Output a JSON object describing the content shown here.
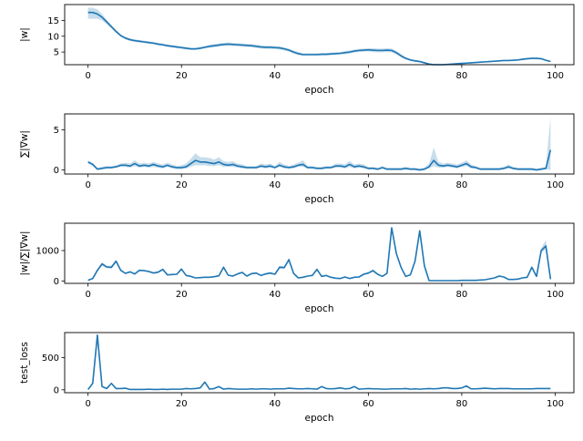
{
  "chart_data": [
    {
      "type": "line",
      "xlabel": "epoch",
      "ylabel": "|w|",
      "xlim": [
        -5,
        104
      ],
      "ylim": [
        1,
        20
      ],
      "xticks": [
        0,
        20,
        40,
        60,
        80,
        100
      ],
      "yticks": [
        5,
        10,
        15
      ],
      "color": "#1f77b4",
      "band": true,
      "x": [
        0,
        1,
        2,
        3,
        4,
        5,
        6,
        7,
        8,
        9,
        10,
        11,
        12,
        13,
        14,
        15,
        16,
        17,
        18,
        19,
        20,
        21,
        22,
        23,
        24,
        25,
        26,
        27,
        28,
        29,
        30,
        31,
        32,
        33,
        34,
        35,
        36,
        37,
        38,
        39,
        40,
        41,
        42,
        43,
        44,
        45,
        46,
        47,
        48,
        49,
        50,
        51,
        52,
        53,
        54,
        55,
        56,
        57,
        58,
        59,
        60,
        61,
        62,
        63,
        64,
        65,
        66,
        67,
        68,
        69,
        70,
        71,
        72,
        73,
        74,
        75,
        76,
        77,
        78,
        79,
        80,
        81,
        82,
        83,
        84,
        85,
        86,
        87,
        88,
        89,
        90,
        91,
        92,
        93,
        94,
        95,
        96,
        97,
        98,
        99
      ],
      "y": [
        17.5,
        17.5,
        17.0,
        16.0,
        14.5,
        13.0,
        11.5,
        10.2,
        9.4,
        8.9,
        8.6,
        8.4,
        8.2,
        8.0,
        7.8,
        7.5,
        7.3,
        7.0,
        6.8,
        6.6,
        6.4,
        6.2,
        6.0,
        6.0,
        6.2,
        6.5,
        6.8,
        7.0,
        7.2,
        7.4,
        7.5,
        7.4,
        7.3,
        7.2,
        7.1,
        7.0,
        6.8,
        6.6,
        6.5,
        6.5,
        6.4,
        6.3,
        6.0,
        5.6,
        5.0,
        4.5,
        4.2,
        4.2,
        4.2,
        4.2,
        4.3,
        4.3,
        4.4,
        4.5,
        4.6,
        4.8,
        5.0,
        5.3,
        5.5,
        5.6,
        5.7,
        5.6,
        5.5,
        5.5,
        5.6,
        5.5,
        4.8,
        3.8,
        3.0,
        2.5,
        2.2,
        2.0,
        1.6,
        1.2,
        1.0,
        1.0,
        1.0,
        1.1,
        1.2,
        1.3,
        1.4,
        1.5,
        1.6,
        1.7,
        1.8,
        1.9,
        2.0,
        2.1,
        2.2,
        2.3,
        2.3,
        2.4,
        2.5,
        2.7,
        2.9,
        3.0,
        3.0,
        2.9,
        2.4,
        2.0
      ],
      "lower": [
        15.5,
        15.5,
        15.5,
        15.0,
        13.8,
        12.5,
        11.0,
        9.8,
        9.0,
        8.5,
        8.2,
        8.0,
        7.8,
        7.6,
        7.4,
        7.1,
        6.9,
        6.6,
        6.4,
        6.2,
        6.0,
        5.8,
        5.6,
        5.6,
        5.8,
        6.1,
        6.3,
        6.5,
        6.7,
        6.9,
        7.0,
        6.9,
        6.8,
        6.7,
        6.6,
        6.5,
        6.3,
        6.1,
        6.0,
        6.0,
        5.9,
        5.8,
        5.5,
        5.1,
        4.5,
        4.0,
        3.8,
        3.8,
        3.8,
        3.8,
        3.9,
        3.9,
        4.0,
        4.1,
        4.2,
        4.3,
        4.5,
        4.8,
        5.0,
        5.1,
        5.2,
        5.0,
        4.9,
        4.9,
        5.0,
        4.9,
        4.2,
        3.3,
        2.6,
        2.2,
        1.9,
        1.7,
        1.3,
        1.0,
        0.8,
        0.8,
        0.8,
        0.9,
        1.0,
        1.1,
        1.2,
        1.3,
        1.4,
        1.5,
        1.6,
        1.7,
        1.8,
        1.9,
        2.0,
        2.1,
        2.1,
        2.2,
        2.3,
        2.4,
        2.6,
        2.7,
        2.7,
        2.6,
        2.2,
        1.8
      ],
      "upper": [
        19.0,
        19.0,
        18.5,
        17.0,
        15.2,
        13.6,
        12.0,
        10.6,
        9.8,
        9.3,
        9.0,
        8.8,
        8.6,
        8.4,
        8.2,
        7.9,
        7.7,
        7.4,
        7.2,
        7.0,
        6.8,
        6.6,
        6.4,
        6.4,
        6.6,
        6.9,
        7.3,
        7.5,
        7.7,
        7.9,
        8.0,
        7.9,
        7.8,
        7.7,
        7.6,
        7.5,
        7.3,
        7.1,
        7.0,
        7.0,
        6.9,
        6.8,
        6.5,
        6.1,
        5.5,
        5.0,
        4.6,
        4.6,
        4.6,
        4.6,
        4.7,
        4.7,
        4.8,
        4.9,
        5.0,
        5.3,
        5.5,
        5.8,
        6.0,
        6.1,
        6.2,
        6.2,
        6.1,
        6.1,
        6.2,
        6.1,
        5.4,
        4.3,
        3.4,
        2.8,
        2.5,
        2.3,
        1.9,
        1.4,
        1.2,
        1.2,
        1.2,
        1.3,
        1.4,
        1.5,
        1.6,
        1.7,
        1.8,
        1.9,
        2.0,
        2.1,
        2.2,
        2.3,
        2.4,
        2.5,
        2.5,
        2.6,
        2.7,
        3.0,
        3.2,
        3.3,
        3.3,
        3.2,
        2.6,
        2.2
      ]
    },
    {
      "type": "line",
      "xlabel": "epoch",
      "ylabel": "∑|∇w|",
      "xlim": [
        -5,
        104
      ],
      "ylim": [
        -0.5,
        7.0
      ],
      "xticks": [
        0,
        20,
        40,
        60,
        80,
        100
      ],
      "yticks": [
        0,
        5
      ],
      "color": "#1f77b4",
      "band": true,
      "x": [
        0,
        1,
        2,
        3,
        4,
        5,
        6,
        7,
        8,
        9,
        10,
        11,
        12,
        13,
        14,
        15,
        16,
        17,
        18,
        19,
        20,
        21,
        22,
        23,
        24,
        25,
        26,
        27,
        28,
        29,
        30,
        31,
        32,
        33,
        34,
        35,
        36,
        37,
        38,
        39,
        40,
        41,
        42,
        43,
        44,
        45,
        46,
        47,
        48,
        49,
        50,
        51,
        52,
        53,
        54,
        55,
        56,
        57,
        58,
        59,
        60,
        61,
        62,
        63,
        64,
        65,
        66,
        67,
        68,
        69,
        70,
        71,
        72,
        73,
        74,
        75,
        76,
        77,
        78,
        79,
        80,
        81,
        82,
        83,
        84,
        85,
        86,
        87,
        88,
        89,
        90,
        91,
        92,
        93,
        94,
        95,
        96,
        97,
        98,
        99
      ],
      "y": [
        1.0,
        0.7,
        0.1,
        0.2,
        0.3,
        0.3,
        0.4,
        0.6,
        0.6,
        0.5,
        0.8,
        0.5,
        0.6,
        0.5,
        0.7,
        0.5,
        0.4,
        0.6,
        0.4,
        0.3,
        0.3,
        0.4,
        0.8,
        1.2,
        1.0,
        1.0,
        0.9,
        0.8,
        1.0,
        0.7,
        0.6,
        0.7,
        0.5,
        0.4,
        0.3,
        0.3,
        0.3,
        0.5,
        0.4,
        0.5,
        0.3,
        0.6,
        0.4,
        0.3,
        0.4,
        0.6,
        0.7,
        0.3,
        0.3,
        0.2,
        0.2,
        0.3,
        0.3,
        0.5,
        0.5,
        0.4,
        0.7,
        0.4,
        0.5,
        0.4,
        0.2,
        0.2,
        0.1,
        0.3,
        0.1,
        0.1,
        0.1,
        0.1,
        0.2,
        0.1,
        0.1,
        0.0,
        0.1,
        0.4,
        1.2,
        0.6,
        0.5,
        0.6,
        0.5,
        0.4,
        0.6,
        0.8,
        0.4,
        0.3,
        0.1,
        0.1,
        0.1,
        0.1,
        0.1,
        0.2,
        0.4,
        0.2,
        0.1,
        0.1,
        0.1,
        0.1,
        0.0,
        0.1,
        0.2,
        2.5
      ],
      "lower": [
        0.8,
        0.5,
        0.0,
        0.1,
        0.2,
        0.2,
        0.3,
        0.4,
        0.4,
        0.3,
        0.5,
        0.3,
        0.4,
        0.3,
        0.4,
        0.3,
        0.2,
        0.4,
        0.2,
        0.1,
        0.1,
        0.2,
        0.4,
        0.6,
        0.6,
        0.6,
        0.5,
        0.5,
        0.6,
        0.4,
        0.4,
        0.4,
        0.3,
        0.2,
        0.2,
        0.2,
        0.2,
        0.3,
        0.2,
        0.3,
        0.2,
        0.4,
        0.2,
        0.2,
        0.2,
        0.4,
        0.4,
        0.2,
        0.2,
        0.1,
        0.1,
        0.2,
        0.2,
        0.3,
        0.3,
        0.2,
        0.4,
        0.2,
        0.3,
        0.2,
        0.1,
        0.1,
        0.0,
        0.2,
        0.0,
        0.0,
        0.0,
        0.0,
        0.1,
        0.0,
        0.0,
        0.0,
        0.0,
        0.2,
        0.5,
        0.3,
        0.3,
        0.4,
        0.3,
        0.2,
        0.4,
        0.5,
        0.2,
        0.2,
        0.0,
        0.0,
        0.0,
        0.0,
        0.0,
        0.1,
        0.2,
        0.1,
        0.0,
        0.0,
        0.0,
        0.0,
        0.0,
        0.0,
        0.1,
        0.0
      ],
      "upper": [
        1.2,
        0.9,
        0.3,
        0.4,
        0.5,
        0.5,
        0.6,
        0.8,
        0.9,
        0.8,
        1.2,
        0.8,
        0.9,
        0.8,
        1.0,
        0.8,
        0.7,
        0.9,
        0.7,
        0.5,
        0.6,
        0.8,
        1.4,
        2.1,
        1.6,
        1.6,
        1.5,
        1.3,
        1.6,
        1.1,
        1.0,
        1.1,
        0.8,
        0.7,
        0.5,
        0.5,
        0.5,
        0.8,
        0.7,
        0.8,
        0.5,
        1.0,
        0.7,
        0.5,
        0.7,
        0.9,
        1.2,
        0.5,
        0.5,
        0.4,
        0.4,
        0.5,
        0.5,
        0.8,
        0.8,
        0.7,
        1.1,
        0.7,
        0.8,
        0.7,
        0.4,
        0.4,
        0.3,
        0.5,
        0.3,
        0.3,
        0.3,
        0.3,
        0.4,
        0.3,
        0.3,
        0.2,
        0.3,
        0.8,
        2.8,
        1.0,
        0.8,
        0.9,
        0.8,
        0.7,
        0.9,
        1.2,
        0.7,
        0.5,
        0.3,
        0.3,
        0.3,
        0.3,
        0.3,
        0.4,
        0.7,
        0.4,
        0.3,
        0.3,
        0.3,
        0.3,
        0.2,
        0.3,
        0.4,
        6.6
      ]
    },
    {
      "type": "line",
      "xlabel": "epoch",
      "ylabel": "|w|/∑|∇w|",
      "xlim": [
        -5,
        104
      ],
      "ylim": [
        -80,
        1900
      ],
      "xticks": [
        0,
        20,
        40,
        60,
        80,
        100
      ],
      "yticks": [
        0,
        1000
      ],
      "color": "#1f77b4",
      "band": true,
      "x": [
        0,
        1,
        2,
        3,
        4,
        5,
        6,
        7,
        8,
        9,
        10,
        11,
        12,
        13,
        14,
        15,
        16,
        17,
        18,
        19,
        20,
        21,
        22,
        23,
        24,
        25,
        26,
        27,
        28,
        29,
        30,
        31,
        32,
        33,
        34,
        35,
        36,
        37,
        38,
        39,
        40,
        41,
        42,
        43,
        44,
        45,
        46,
        47,
        48,
        49,
        50,
        51,
        52,
        53,
        54,
        55,
        56,
        57,
        58,
        59,
        60,
        61,
        62,
        63,
        64,
        65,
        66,
        67,
        68,
        69,
        70,
        71,
        72,
        73,
        74,
        75,
        76,
        77,
        78,
        79,
        80,
        81,
        82,
        83,
        84,
        85,
        86,
        87,
        88,
        89,
        90,
        91,
        92,
        93,
        94,
        95,
        96,
        97,
        98,
        99
      ],
      "y": [
        20,
        80,
        350,
        560,
        460,
        450,
        650,
        350,
        250,
        300,
        230,
        350,
        340,
        310,
        260,
        290,
        380,
        200,
        210,
        220,
        390,
        180,
        150,
        100,
        110,
        120,
        120,
        140,
        170,
        450,
        190,
        160,
        230,
        280,
        160,
        240,
        260,
        180,
        230,
        260,
        220,
        450,
        440,
        700,
        250,
        100,
        120,
        160,
        180,
        380,
        150,
        180,
        120,
        90,
        80,
        130,
        80,
        120,
        130,
        220,
        260,
        340,
        220,
        150,
        250,
        1750,
        900,
        450,
        150,
        200,
        650,
        1650,
        500,
        10,
        10,
        10,
        10,
        10,
        10,
        10,
        20,
        20,
        20,
        20,
        30,
        40,
        70,
        100,
        160,
        130,
        50,
        50,
        60,
        100,
        120,
        450,
        150,
        1000,
        1150,
        60
      ],
      "lower": [
        10,
        60,
        300,
        500,
        420,
        400,
        600,
        320,
        220,
        270,
        200,
        320,
        310,
        280,
        230,
        260,
        340,
        180,
        190,
        200,
        350,
        160,
        130,
        90,
        100,
        110,
        110,
        120,
        150,
        400,
        170,
        140,
        200,
        250,
        140,
        210,
        230,
        160,
        200,
        230,
        200,
        400,
        400,
        640,
        220,
        90,
        100,
        140,
        160,
        340,
        130,
        160,
        100,
        80,
        70,
        110,
        70,
        100,
        110,
        190,
        230,
        300,
        190,
        130,
        220,
        1700,
        860,
        420,
        130,
        180,
        600,
        1600,
        460,
        5,
        5,
        5,
        5,
        5,
        5,
        5,
        10,
        10,
        10,
        10,
        20,
        30,
        50,
        80,
        130,
        110,
        40,
        40,
        50,
        80,
        100,
        400,
        120,
        920,
        1050,
        40
      ],
      "upper": [
        30,
        100,
        400,
        620,
        500,
        500,
        700,
        380,
        280,
        330,
        260,
        380,
        370,
        340,
        290,
        320,
        420,
        220,
        230,
        240,
        430,
        200,
        170,
        110,
        120,
        130,
        130,
        160,
        190,
        500,
        210,
        180,
        260,
        310,
        180,
        270,
        290,
        200,
        260,
        290,
        240,
        500,
        480,
        760,
        280,
        110,
        140,
        180,
        200,
        420,
        170,
        200,
        140,
        100,
        90,
        150,
        90,
        140,
        150,
        250,
        290,
        380,
        250,
        170,
        280,
        1800,
        940,
        480,
        170,
        220,
        700,
        1700,
        540,
        15,
        15,
        15,
        15,
        15,
        15,
        15,
        30,
        30,
        30,
        30,
        40,
        50,
        90,
        120,
        190,
        150,
        60,
        60,
        70,
        120,
        140,
        500,
        180,
        1080,
        1350,
        80
      ]
    },
    {
      "type": "line",
      "xlabel": "epoch",
      "ylabel": "test_loss",
      "xlim": [
        -5,
        104
      ],
      "ylim": [
        -45,
        890
      ],
      "xticks": [
        0,
        20,
        40,
        60,
        80,
        100
      ],
      "yticks": [
        0,
        500
      ],
      "color": "#1f77b4",
      "band": false,
      "x": [
        0,
        1,
        2,
        3,
        4,
        5,
        6,
        7,
        8,
        9,
        10,
        11,
        12,
        13,
        14,
        15,
        16,
        17,
        18,
        19,
        20,
        21,
        22,
        23,
        24,
        25,
        26,
        27,
        28,
        29,
        30,
        31,
        32,
        33,
        34,
        35,
        36,
        37,
        38,
        39,
        40,
        41,
        42,
        43,
        44,
        45,
        46,
        47,
        48,
        49,
        50,
        51,
        52,
        53,
        54,
        55,
        56,
        57,
        58,
        59,
        60,
        61,
        62,
        63,
        64,
        65,
        66,
        67,
        68,
        69,
        70,
        71,
        72,
        73,
        74,
        75,
        76,
        77,
        78,
        79,
        80,
        81,
        82,
        83,
        84,
        85,
        86,
        87,
        88,
        89,
        90,
        91,
        92,
        93,
        94,
        95,
        96,
        97,
        98,
        99
      ],
      "y": [
        5,
        100,
        850,
        50,
        20,
        100,
        20,
        20,
        25,
        5,
        5,
        5,
        5,
        10,
        5,
        5,
        10,
        5,
        10,
        10,
        10,
        20,
        15,
        20,
        30,
        120,
        10,
        20,
        50,
        10,
        20,
        15,
        10,
        10,
        10,
        15,
        10,
        15,
        15,
        10,
        15,
        15,
        15,
        25,
        20,
        15,
        15,
        20,
        15,
        10,
        50,
        20,
        15,
        20,
        30,
        15,
        20,
        50,
        10,
        15,
        20,
        15,
        15,
        10,
        10,
        15,
        15,
        15,
        20,
        10,
        15,
        10,
        15,
        20,
        15,
        20,
        30,
        30,
        20,
        20,
        30,
        60,
        15,
        15,
        20,
        25,
        20,
        15,
        20,
        20,
        20,
        15,
        15,
        15,
        15,
        15,
        20,
        20,
        20,
        20
      ]
    }
  ]
}
